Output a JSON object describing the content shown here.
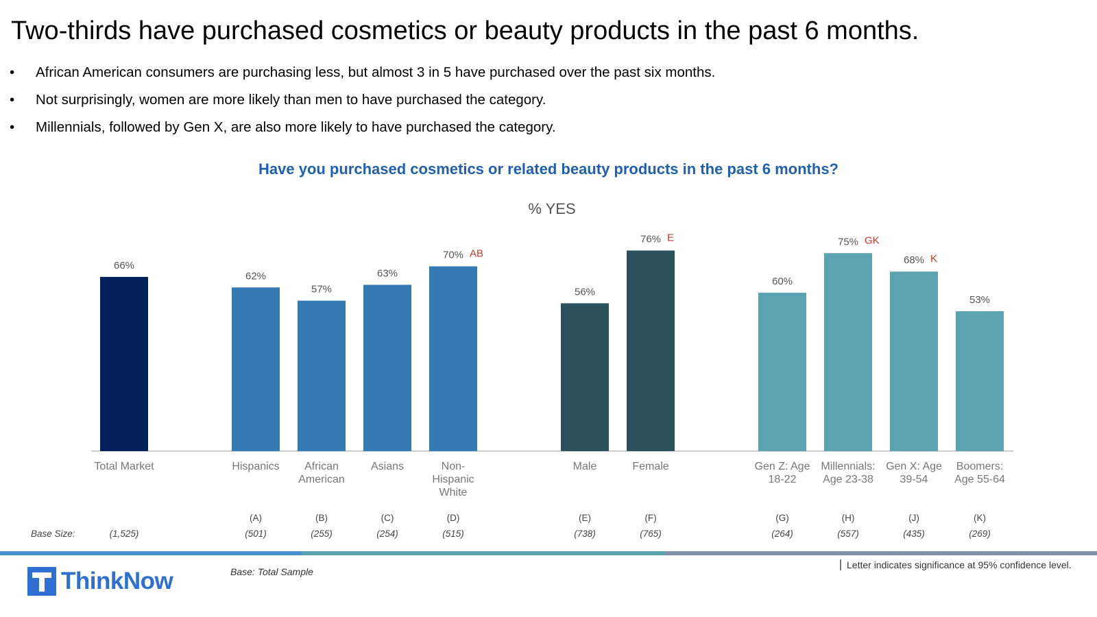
{
  "title": "Two-thirds have purchased cosmetics or beauty products in the past 6 months.",
  "bullets": [
    "African American consumers are purchasing less, but almost 3 in 5 have purchased over the past six months.",
    "Not surprisingly, women are more likely than men to have purchased the category.",
    "Millennials, followed by Gen X, are also more likely to have purchased the category."
  ],
  "bullet_symbol": "•",
  "question": "Have you purchased cosmetics or related beauty products in the past 6 months?",
  "chart_data": {
    "type": "bar",
    "title": "% YES",
    "ylim": [
      0,
      100
    ],
    "value_suffix": "%",
    "base_size_label": "Base Size:",
    "categories": [
      {
        "label": [
          "Total Market"
        ],
        "value": 66,
        "sig": "",
        "letter": "",
        "base": "(1,525)",
        "color": "#05215a"
      },
      {
        "label": [
          "Hispanics"
        ],
        "value": 62,
        "sig": "",
        "letter": "(A)",
        "base": "(501)",
        "color": "#3478b4"
      },
      {
        "label": [
          "African",
          "American"
        ],
        "value": 57,
        "sig": "",
        "letter": "(B)",
        "base": "(255)",
        "color": "#3478b4"
      },
      {
        "label": [
          "Asians"
        ],
        "value": 63,
        "sig": "",
        "letter": "(C)",
        "base": "(254)",
        "color": "#3478b4"
      },
      {
        "label": [
          "Non-",
          "Hispanic",
          "White"
        ],
        "value": 70,
        "sig": "AB",
        "letter": "(D)",
        "base": "(515)",
        "color": "#3478b4"
      },
      {
        "label": [
          "Male"
        ],
        "value": 56,
        "sig": "",
        "letter": "(E)",
        "base": "(738)",
        "color": "#2b525b"
      },
      {
        "label": [
          "Female"
        ],
        "value": 76,
        "sig": "E",
        "letter": "(F)",
        "base": "(765)",
        "color": "#2b525b"
      },
      {
        "label": [
          "Gen Z: Age",
          "18-22"
        ],
        "value": 60,
        "sig": "",
        "letter": "(G)",
        "base": "(264)",
        "color": "#5ba3b0"
      },
      {
        "label": [
          "Millennials:",
          "Age 23-38"
        ],
        "value": 75,
        "sig": "GK",
        "letter": "(H)",
        "base": "(557)",
        "color": "#5ba3b0"
      },
      {
        "label": [
          "Gen X: Age",
          "39-54"
        ],
        "value": 68,
        "sig": "K",
        "letter": "(J)",
        "base": "(435)",
        "color": "#5ba3b0"
      },
      {
        "label": [
          "Boomers:",
          "Age 55-64"
        ],
        "value": 53,
        "sig": "",
        "letter": "(K)",
        "base": "(269)",
        "color": "#5ba3b0"
      }
    ]
  },
  "colors": {
    "sig_letters": "#c0392b",
    "divider": [
      "#4a8fd0",
      "#5ba3b0",
      "#8190ad"
    ]
  },
  "footer": {
    "logo_text": "ThinkNow",
    "base_note": "Base: Total Sample",
    "significance_note": "Letter indicates significance at 95% confidence level."
  }
}
